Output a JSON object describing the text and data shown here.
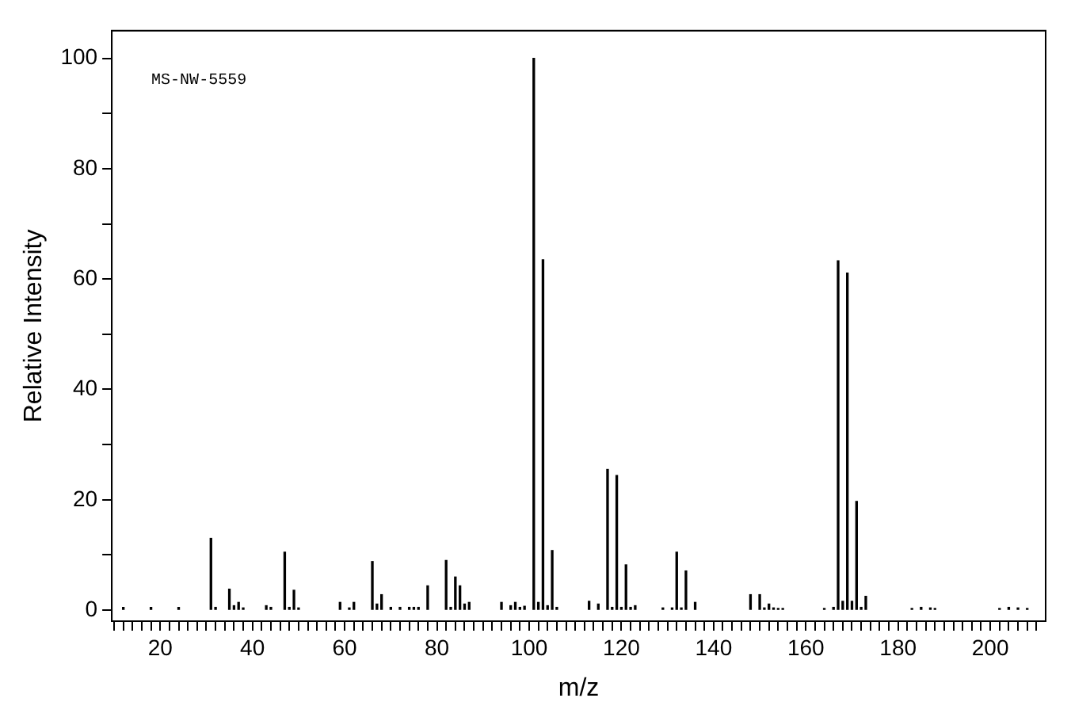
{
  "chart_data": {
    "type": "bar",
    "xlabel": "m/z",
    "ylabel": "Relative Intensity",
    "annotations": [
      "MS-NW-5559"
    ],
    "x": [
      12,
      18,
      24,
      31,
      32,
      35,
      36,
      37,
      38,
      43,
      44,
      47,
      48,
      49,
      50,
      59,
      61,
      62,
      66,
      67,
      68,
      70,
      72,
      74,
      75,
      76,
      78,
      82,
      83,
      84,
      85,
      86,
      87,
      94,
      96,
      97,
      98,
      99,
      101,
      102,
      103,
      104,
      105,
      106,
      113,
      115,
      117,
      118,
      119,
      120,
      121,
      122,
      123,
      129,
      131,
      132,
      133,
      134,
      136,
      148,
      150,
      151,
      152,
      153,
      154,
      155,
      164,
      166,
      167,
      168,
      169,
      170,
      171,
      172,
      173,
      183,
      185,
      187,
      188,
      202,
      204,
      206,
      208
    ],
    "values": [
      0.5,
      0.5,
      0.5,
      13,
      0.5,
      3.8,
      0.8,
      1.4,
      0.4,
      0.8,
      0.5,
      10.5,
      0.5,
      3.6,
      0.4,
      1.4,
      0.4,
      1.4,
      8.8,
      1.1,
      2.8,
      0.5,
      0.5,
      0.5,
      0.5,
      0.5,
      4.4,
      9,
      0.5,
      6,
      4.4,
      1.1,
      1.4,
      1.4,
      0.8,
      1.4,
      0.5,
      0.7,
      100,
      1.4,
      63.5,
      0.8,
      10.8,
      0.5,
      1.6,
      1.1,
      25.5,
      0.5,
      24.4,
      0.5,
      8.2,
      0.5,
      0.8,
      0.4,
      0.4,
      10.5,
      0.4,
      7.1,
      1.4,
      2.8,
      2.8,
      0.4,
      1.1,
      0.4,
      0.3,
      0.3,
      0.3,
      0.5,
      63.3,
      1.6,
      61.1,
      1.6,
      19.7,
      0.5,
      2.5,
      0.3,
      0.5,
      0.4,
      0.3,
      0.3,
      0.5,
      0.4,
      0.3
    ],
    "color": "#000000",
    "xlim": [
      9.5,
      212
    ],
    "ylim": [
      -2,
      105
    ],
    "xticks": [
      {
        "value": 10,
        "label": null
      },
      {
        "value": 12,
        "label": null
      },
      {
        "value": 14,
        "label": null
      },
      {
        "value": 16,
        "label": null
      },
      {
        "value": 18,
        "label": null
      },
      20,
      {
        "value": 22,
        "label": null
      },
      {
        "value": 24,
        "label": null
      },
      {
        "value": 26,
        "label": null
      },
      {
        "value": 28,
        "label": null
      },
      {
        "value": 30,
        "label": null
      },
      {
        "value": 32,
        "label": null
      },
      {
        "value": 34,
        "label": null
      },
      {
        "value": 36,
        "label": null
      },
      {
        "value": 38,
        "label": null
      },
      40,
      {
        "value": 42,
        "label": null
      },
      {
        "value": 44,
        "label": null
      },
      {
        "value": 46,
        "label": null
      },
      {
        "value": 48,
        "label": null
      },
      {
        "value": 50,
        "label": null
      },
      {
        "value": 52,
        "label": null
      },
      {
        "value": 54,
        "label": null
      },
      {
        "value": 56,
        "label": null
      },
      {
        "value": 58,
        "label": null
      },
      60,
      {
        "value": 62,
        "label": null
      },
      {
        "value": 64,
        "label": null
      },
      {
        "value": 66,
        "label": null
      },
      {
        "value": 68,
        "label": null
      },
      {
        "value": 70,
        "label": null
      },
      {
        "value": 72,
        "label": null
      },
      {
        "value": 74,
        "label": null
      },
      {
        "value": 76,
        "label": null
      },
      {
        "value": 78,
        "label": null
      },
      80,
      {
        "value": 82,
        "label": null
      },
      {
        "value": 84,
        "label": null
      },
      {
        "value": 86,
        "label": null
      },
      {
        "value": 88,
        "label": null
      },
      {
        "value": 90,
        "label": null
      },
      {
        "value": 92,
        "label": null
      },
      {
        "value": 94,
        "label": null
      },
      {
        "value": 96,
        "label": null
      },
      {
        "value": 98,
        "label": null
      },
      100,
      {
        "value": 102,
        "label": null
      },
      {
        "value": 104,
        "label": null
      },
      {
        "value": 106,
        "label": null
      },
      {
        "value": 108,
        "label": null
      },
      {
        "value": 110,
        "label": null
      },
      {
        "value": 112,
        "label": null
      },
      {
        "value": 114,
        "label": null
      },
      {
        "value": 116,
        "label": null
      },
      {
        "value": 118,
        "label": null
      },
      120,
      {
        "value": 122,
        "label": null
      },
      {
        "value": 124,
        "label": null
      },
      {
        "value": 126,
        "label": null
      },
      {
        "value": 128,
        "label": null
      },
      {
        "value": 130,
        "label": null
      },
      {
        "value": 132,
        "label": null
      },
      {
        "value": 134,
        "label": null
      },
      {
        "value": 136,
        "label": null
      },
      {
        "value": 138,
        "label": null
      },
      140,
      {
        "value": 142,
        "label": null
      },
      {
        "value": 144,
        "label": null
      },
      {
        "value": 146,
        "label": null
      },
      {
        "value": 148,
        "label": null
      },
      {
        "value": 150,
        "label": null
      },
      {
        "value": 152,
        "label": null
      },
      {
        "value": 154,
        "label": null
      },
      {
        "value": 156,
        "label": null
      },
      {
        "value": 158,
        "label": null
      },
      160,
      {
        "value": 162,
        "label": null
      },
      {
        "value": 164,
        "label": null
      },
      {
        "value": 166,
        "label": null
      },
      {
        "value": 168,
        "label": null
      },
      {
        "value": 170,
        "label": null
      },
      {
        "value": 172,
        "label": null
      },
      {
        "value": 174,
        "label": null
      },
      {
        "value": 176,
        "label": null
      },
      {
        "value": 178,
        "label": null
      },
      180,
      {
        "value": 182,
        "label": null
      },
      {
        "value": 184,
        "label": null
      },
      {
        "value": 186,
        "label": null
      },
      {
        "value": 188,
        "label": null
      },
      {
        "value": 190,
        "label": null
      },
      {
        "value": 192,
        "label": null
      },
      {
        "value": 194,
        "label": null
      },
      {
        "value": 196,
        "label": null
      },
      {
        "value": 198,
        "label": null
      },
      200,
      {
        "value": 202,
        "label": null
      },
      {
        "value": 204,
        "label": null
      },
      {
        "value": 206,
        "label": null
      },
      {
        "value": 208,
        "label": null
      },
      {
        "value": 210,
        "label": null
      }
    ],
    "yticks": [
      0,
      {
        "value": 10,
        "label": null
      },
      20,
      {
        "value": 30,
        "label": null
      },
      40,
      {
        "value": 50,
        "label": null
      },
      60,
      {
        "value": 70,
        "label": null
      },
      80,
      {
        "value": 90,
        "label": null
      },
      100
    ],
    "grid": false,
    "legend": false
  }
}
